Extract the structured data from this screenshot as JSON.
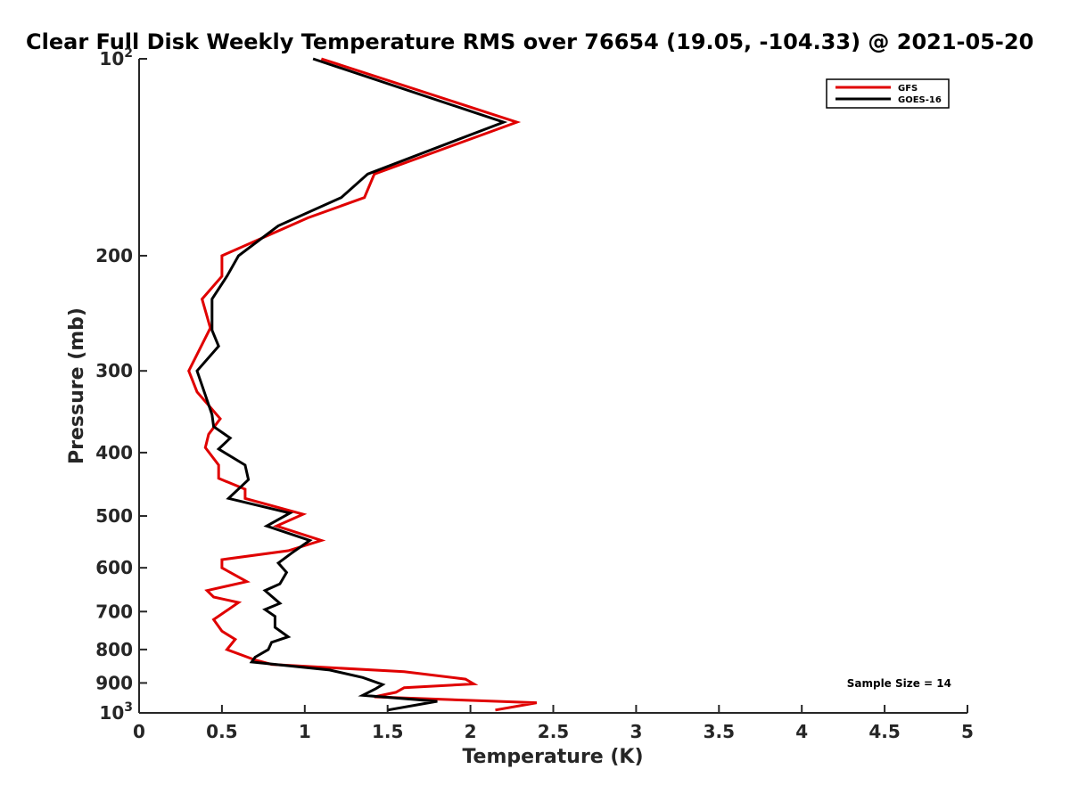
{
  "chart_data": {
    "type": "line",
    "title": "Clear Full Disk Weekly Temperature RMS over 76654 (19.05, -104.33) @ 2021-05-20",
    "xlabel": "Temperature (K)",
    "ylabel": "Pressure (mb)",
    "xlim": [
      0,
      5
    ],
    "ylim": [
      100,
      1000
    ],
    "yscale": "log",
    "y_reversed": true,
    "x_ticks": [
      "0",
      "0.5",
      "1",
      "1.5",
      "2",
      "2.5",
      "3",
      "3.5",
      "4",
      "4.5",
      "5"
    ],
    "y_ticks": [
      {
        "value": 100,
        "base": "10",
        "exp": "2"
      },
      {
        "value": 200,
        "label": "200"
      },
      {
        "value": 300,
        "label": "300"
      },
      {
        "value": 400,
        "label": "400"
      },
      {
        "value": 500,
        "label": "500"
      },
      {
        "value": 600,
        "label": "600"
      },
      {
        "value": 700,
        "label": "700"
      },
      {
        "value": 800,
        "label": "800"
      },
      {
        "value": 900,
        "label": "900"
      },
      {
        "value": 1000,
        "base": "10",
        "exp": "3"
      }
    ],
    "legend": {
      "position": "top-right"
    },
    "annotation": "Sample Size = 14",
    "grid": false,
    "series": [
      {
        "name": "GFS",
        "color": "#e00000",
        "points": [
          [
            1.1,
            100
          ],
          [
            2.28,
            125
          ],
          [
            1.42,
            150
          ],
          [
            1.36,
            163
          ],
          [
            1.02,
            175
          ],
          [
            0.5,
            200
          ],
          [
            0.5,
            215
          ],
          [
            0.38,
            233
          ],
          [
            0.43,
            258
          ],
          [
            0.3,
            300
          ],
          [
            0.35,
            323
          ],
          [
            0.49,
            355
          ],
          [
            0.42,
            375
          ],
          [
            0.4,
            393
          ],
          [
            0.48,
            418
          ],
          [
            0.48,
            438
          ],
          [
            0.64,
            455
          ],
          [
            0.64,
            470
          ],
          [
            0.99,
            497
          ],
          [
            0.83,
            518
          ],
          [
            1.1,
            545
          ],
          [
            0.9,
            565
          ],
          [
            0.5,
            583
          ],
          [
            0.5,
            600
          ],
          [
            0.65,
            630
          ],
          [
            0.41,
            650
          ],
          [
            0.45,
            665
          ],
          [
            0.6,
            678
          ],
          [
            0.45,
            720
          ],
          [
            0.5,
            750
          ],
          [
            0.58,
            772
          ],
          [
            0.53,
            800
          ],
          [
            0.7,
            830
          ],
          [
            0.8,
            843
          ],
          [
            1.6,
            865
          ],
          [
            1.97,
            888
          ],
          [
            2.02,
            903
          ],
          [
            1.6,
            915
          ],
          [
            1.55,
            930
          ],
          [
            1.42,
            945
          ],
          [
            2.4,
            965
          ],
          [
            2.15,
            990
          ]
        ]
      },
      {
        "name": "GOES-16",
        "color": "#000000",
        "points": [
          [
            1.05,
            100
          ],
          [
            2.2,
            125
          ],
          [
            1.38,
            150
          ],
          [
            1.22,
            163
          ],
          [
            0.84,
            180
          ],
          [
            0.6,
            200
          ],
          [
            0.53,
            215
          ],
          [
            0.44,
            233
          ],
          [
            0.44,
            260
          ],
          [
            0.48,
            275
          ],
          [
            0.35,
            300
          ],
          [
            0.44,
            350
          ],
          [
            0.45,
            365
          ],
          [
            0.55,
            380
          ],
          [
            0.48,
            395
          ],
          [
            0.64,
            418
          ],
          [
            0.66,
            440
          ],
          [
            0.54,
            470
          ],
          [
            0.91,
            495
          ],
          [
            0.77,
            518
          ],
          [
            1.03,
            545
          ],
          [
            0.92,
            570
          ],
          [
            0.84,
            590
          ],
          [
            0.89,
            610
          ],
          [
            0.85,
            635
          ],
          [
            0.76,
            650
          ],
          [
            0.85,
            680
          ],
          [
            0.76,
            695
          ],
          [
            0.82,
            712
          ],
          [
            0.82,
            740
          ],
          [
            0.9,
            765
          ],
          [
            0.8,
            780
          ],
          [
            0.78,
            800
          ],
          [
            0.7,
            822
          ],
          [
            0.68,
            836
          ],
          [
            1.15,
            860
          ],
          [
            1.35,
            883
          ],
          [
            1.47,
            905
          ],
          [
            1.43,
            918
          ],
          [
            1.35,
            940
          ],
          [
            1.8,
            960
          ],
          [
            1.5,
            990
          ]
        ]
      }
    ]
  }
}
